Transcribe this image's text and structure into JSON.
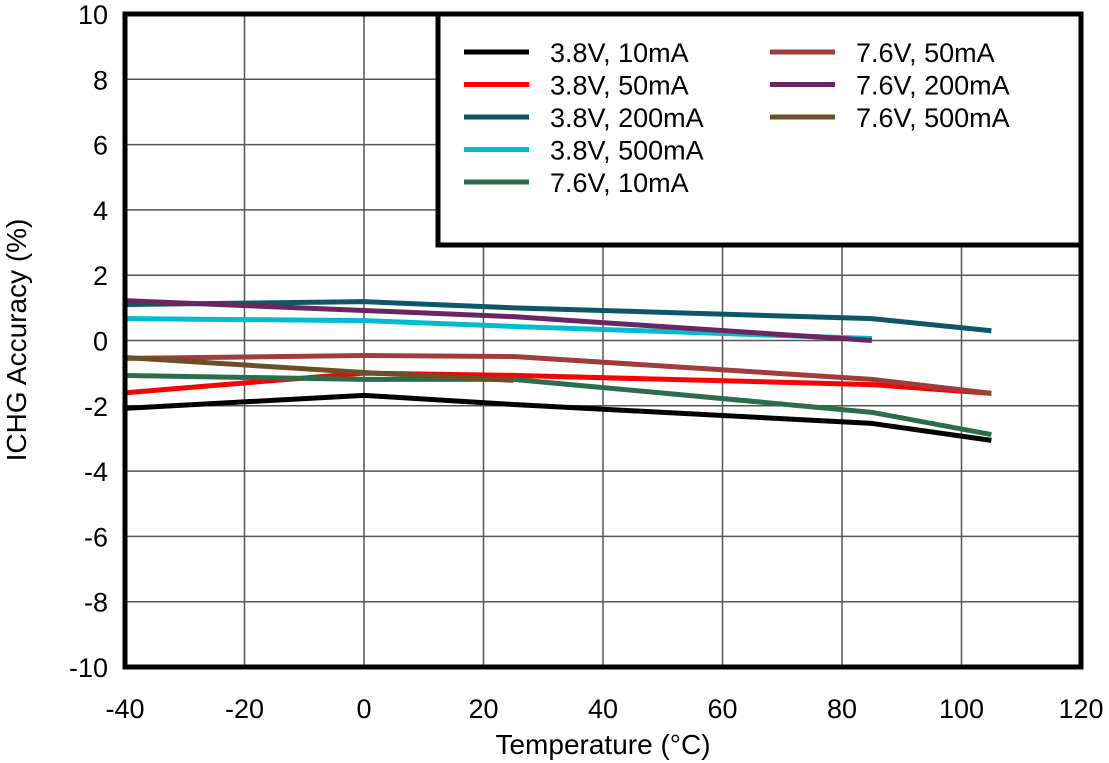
{
  "chart_data": {
    "type": "line",
    "title": "",
    "xlabel": "Temperature (°C)",
    "ylabel": "ICHG Accuracy (%)",
    "xlim": [
      -40,
      120
    ],
    "ylim": [
      -10,
      10
    ],
    "xticks": [
      -40,
      -20,
      0,
      20,
      40,
      60,
      80,
      100,
      120
    ],
    "yticks": [
      -10,
      -8,
      -6,
      -4,
      -2,
      0,
      2,
      4,
      6,
      8,
      10
    ],
    "grid": true,
    "legend_position": "top-right",
    "series": [
      {
        "name": "3.8V, 10mA",
        "color": "#000000",
        "x": [
          -40,
          0,
          25,
          85,
          105
        ],
        "y": [
          -2.08,
          -1.68,
          -1.96,
          -2.54,
          -3.06
        ]
      },
      {
        "name": "3.8V, 50mA",
        "color": "#ff0000",
        "x": [
          -40,
          0,
          25,
          85,
          105
        ],
        "y": [
          -1.6,
          -1.0,
          -1.07,
          -1.35,
          -1.62
        ]
      },
      {
        "name": "3.8V, 200mA",
        "color": "#0d5866",
        "x": [
          -40,
          0,
          25,
          85,
          105
        ],
        "y": [
          1.1,
          1.19,
          1.0,
          0.67,
          0.3
        ]
      },
      {
        "name": "3.8V, 500mA",
        "color": "#00bcd0",
        "x": [
          -40,
          0,
          25,
          85
        ],
        "y": [
          0.67,
          0.61,
          0.43,
          0.06
        ]
      },
      {
        "name": "7.6V, 10mA",
        "color": "#2a6e4e",
        "x": [
          -40,
          0,
          25,
          85,
          105
        ],
        "y": [
          -1.07,
          -1.19,
          -1.19,
          -2.2,
          -2.88
        ]
      },
      {
        "name": "7.6V, 50mA",
        "color": "#a03c3c",
        "x": [
          -40,
          0,
          25,
          85,
          105
        ],
        "y": [
          -0.55,
          -0.46,
          -0.49,
          -1.19,
          -1.62
        ]
      },
      {
        "name": "7.6V, 200mA",
        "color": "#6a2661",
        "x": [
          -40,
          0,
          25,
          85
        ],
        "y": [
          1.22,
          0.92,
          0.73,
          0.0
        ]
      },
      {
        "name": "7.6V, 500mA",
        "color": "#6b5026",
        "x": [
          -40,
          0,
          25
        ],
        "y": [
          -0.52,
          -0.98,
          -1.22
        ]
      }
    ]
  }
}
